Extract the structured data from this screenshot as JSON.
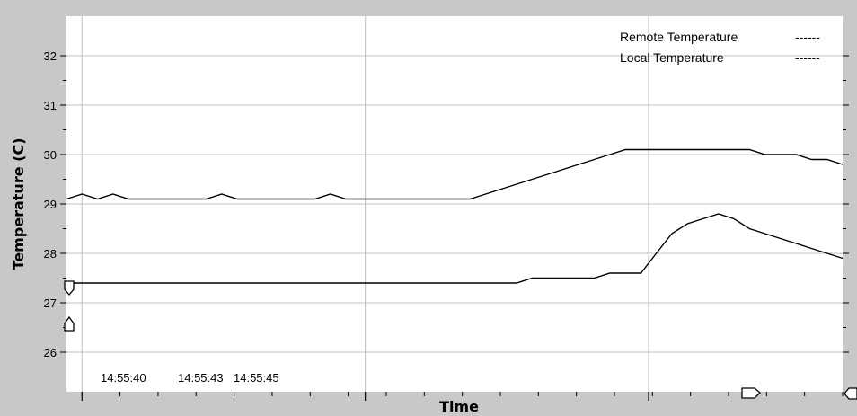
{
  "chart_data": {
    "type": "line",
    "xlabel": "Time",
    "ylabel": "Temperature (C)",
    "ylim": [
      25.2,
      32.8
    ],
    "yticks": [
      26,
      27,
      28,
      29,
      30,
      31,
      32
    ],
    "xlim": [
      0,
      100
    ],
    "time_labels": [
      "14:55:40",
      "14:55:43",
      "14:55:45"
    ],
    "grid": true,
    "legend_position": "top-right",
    "series": [
      {
        "name": "Remote Temperature",
        "legend_suffix": "------",
        "color": "#000000",
        "x": [
          0,
          2,
          4,
          6,
          8,
          10,
          12,
          14,
          16,
          18,
          20,
          22,
          24,
          26,
          28,
          30,
          32,
          34,
          36,
          38,
          40,
          42,
          44,
          46,
          48,
          50,
          52,
          54,
          56,
          58,
          60,
          62,
          64,
          66,
          68,
          70,
          72,
          74,
          76,
          78,
          80,
          82,
          84,
          86,
          88,
          90,
          92,
          94,
          96,
          98,
          100
        ],
        "y": [
          29.1,
          29.2,
          29.1,
          29.2,
          29.1,
          29.1,
          29.1,
          29.1,
          29.1,
          29.1,
          29.2,
          29.1,
          29.1,
          29.1,
          29.1,
          29.1,
          29.1,
          29.2,
          29.1,
          29.1,
          29.1,
          29.1,
          29.1,
          29.1,
          29.1,
          29.1,
          29.1,
          29.2,
          29.3,
          29.4,
          29.5,
          29.6,
          29.7,
          29.8,
          29.9,
          30.0,
          30.1,
          30.1,
          30.1,
          30.1,
          30.1,
          30.1,
          30.1,
          30.1,
          30.1,
          30.0,
          30.0,
          30.0,
          29.9,
          29.9,
          29.8
        ]
      },
      {
        "name": "Local Temperature",
        "legend_suffix": "------",
        "color": "#000000",
        "x": [
          0,
          2,
          4,
          6,
          8,
          10,
          12,
          14,
          16,
          18,
          20,
          22,
          24,
          26,
          28,
          30,
          32,
          34,
          36,
          38,
          40,
          42,
          44,
          46,
          48,
          50,
          52,
          54,
          56,
          58,
          60,
          62,
          64,
          66,
          68,
          70,
          72,
          74,
          76,
          78,
          80,
          82,
          84,
          86,
          88,
          90,
          92,
          94,
          96,
          98,
          100
        ],
        "y": [
          27.4,
          27.4,
          27.4,
          27.4,
          27.4,
          27.4,
          27.4,
          27.4,
          27.4,
          27.4,
          27.4,
          27.4,
          27.4,
          27.4,
          27.4,
          27.4,
          27.4,
          27.4,
          27.4,
          27.4,
          27.4,
          27.4,
          27.4,
          27.4,
          27.4,
          27.4,
          27.4,
          27.4,
          27.4,
          27.4,
          27.5,
          27.5,
          27.5,
          27.5,
          27.5,
          27.6,
          27.6,
          27.6,
          28.0,
          28.4,
          28.6,
          28.7,
          28.8,
          28.7,
          28.5,
          28.4,
          28.3,
          28.2,
          28.1,
          28.0,
          27.9
        ]
      }
    ]
  }
}
